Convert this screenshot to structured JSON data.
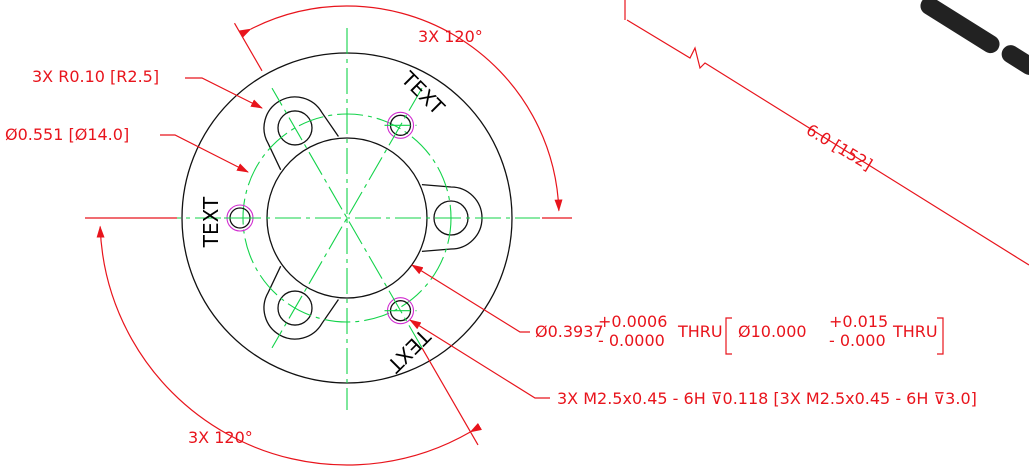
{
  "dimensions": {
    "angle_top": "3X 120°",
    "fillet_radius": "3X R0.10 [R2.5]",
    "bolt_circle": "Ø0.551 [Ø14.0]",
    "angle_bottom": "3X 120°",
    "length": "6.0 [152]",
    "bore": {
      "nominal": "Ø0.3937",
      "upper": "+0.0006",
      "lower": "- 0.0000",
      "suffix": "THRU",
      "metric_nominal": "Ø10.000",
      "metric_upper": "+0.015",
      "metric_lower": "- 0.000",
      "metric_suffix": "THRU"
    },
    "thread": "3X M2.5x0.45 - 6H ⊽0.118 [3X M2.5x0.45 - 6H ⊽3.0]"
  },
  "engravings": [
    "TEXT",
    "TEXT",
    "TEXT"
  ]
}
